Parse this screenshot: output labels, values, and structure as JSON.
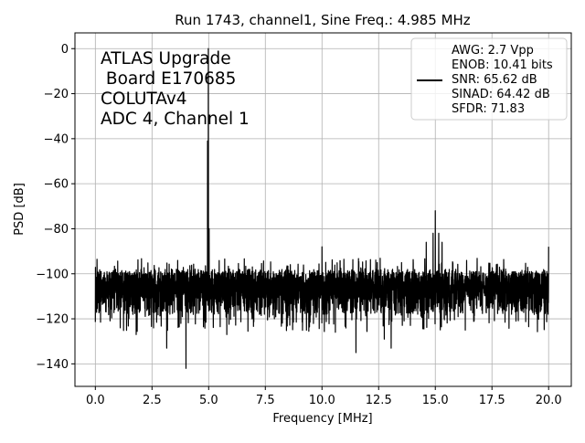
{
  "chart_data": {
    "type": "line",
    "title": "Run 1743, channel1, Sine Freq.: 4.985 MHz",
    "xlabel": "Frequency [MHz]",
    "ylabel": "PSD [dB]",
    "xlim": [
      -0.9,
      21.0
    ],
    "ylim": [
      -150,
      7
    ],
    "xticks": [
      0.0,
      2.5,
      5.0,
      7.5,
      10.0,
      12.5,
      15.0,
      17.5,
      20.0
    ],
    "xtick_labels": [
      "0.0",
      "2.5",
      "5.0",
      "7.5",
      "10.0",
      "12.5",
      "15.0",
      "17.5",
      "20.0"
    ],
    "yticks": [
      0,
      -20,
      -40,
      -60,
      -80,
      -100,
      -120,
      -140
    ],
    "ytick_labels": [
      "0",
      "−20",
      "−40",
      "−60",
      "−80",
      "−100",
      "−120",
      "−140"
    ],
    "grid": true,
    "line_color": "#000000",
    "annotation_lines": [
      "ATLAS Upgrade",
      " Board E170685",
      "COLUTAv4",
      "ADC 4, Channel 1"
    ],
    "legend": {
      "placement": "top-right",
      "lines": [
        "AWG: 2.7 Vpp",
        "ENOB: 10.41 bits",
        "SNR: 65.62 dB",
        "SINAD: 64.42 dB",
        "SFDR: 71.83"
      ]
    },
    "series": [
      {
        "noise_floor_db": -105,
        "noise_band_db": [
          -118,
          -98
        ],
        "peaks": [
          {
            "x": 4.985,
            "y": 0
          },
          {
            "x": 4.95,
            "y": -41
          },
          {
            "x": 5.02,
            "y": -80
          },
          {
            "x": 15.0,
            "y": -72
          },
          {
            "x": 14.9,
            "y": -82
          },
          {
            "x": 15.15,
            "y": -82
          },
          {
            "x": 14.6,
            "y": -86
          },
          {
            "x": 15.3,
            "y": -86
          },
          {
            "x": 10.0,
            "y": -88
          },
          {
            "x": 20.0,
            "y": -88
          }
        ],
        "dips": [
          {
            "x": 4.0,
            "y": -142
          },
          {
            "x": 3.15,
            "y": -133
          },
          {
            "x": 11.5,
            "y": -135
          },
          {
            "x": 13.05,
            "y": -133
          },
          {
            "x": 1.8,
            "y": -127
          },
          {
            "x": 5.8,
            "y": -127
          },
          {
            "x": 12.75,
            "y": -129
          }
        ]
      }
    ]
  }
}
